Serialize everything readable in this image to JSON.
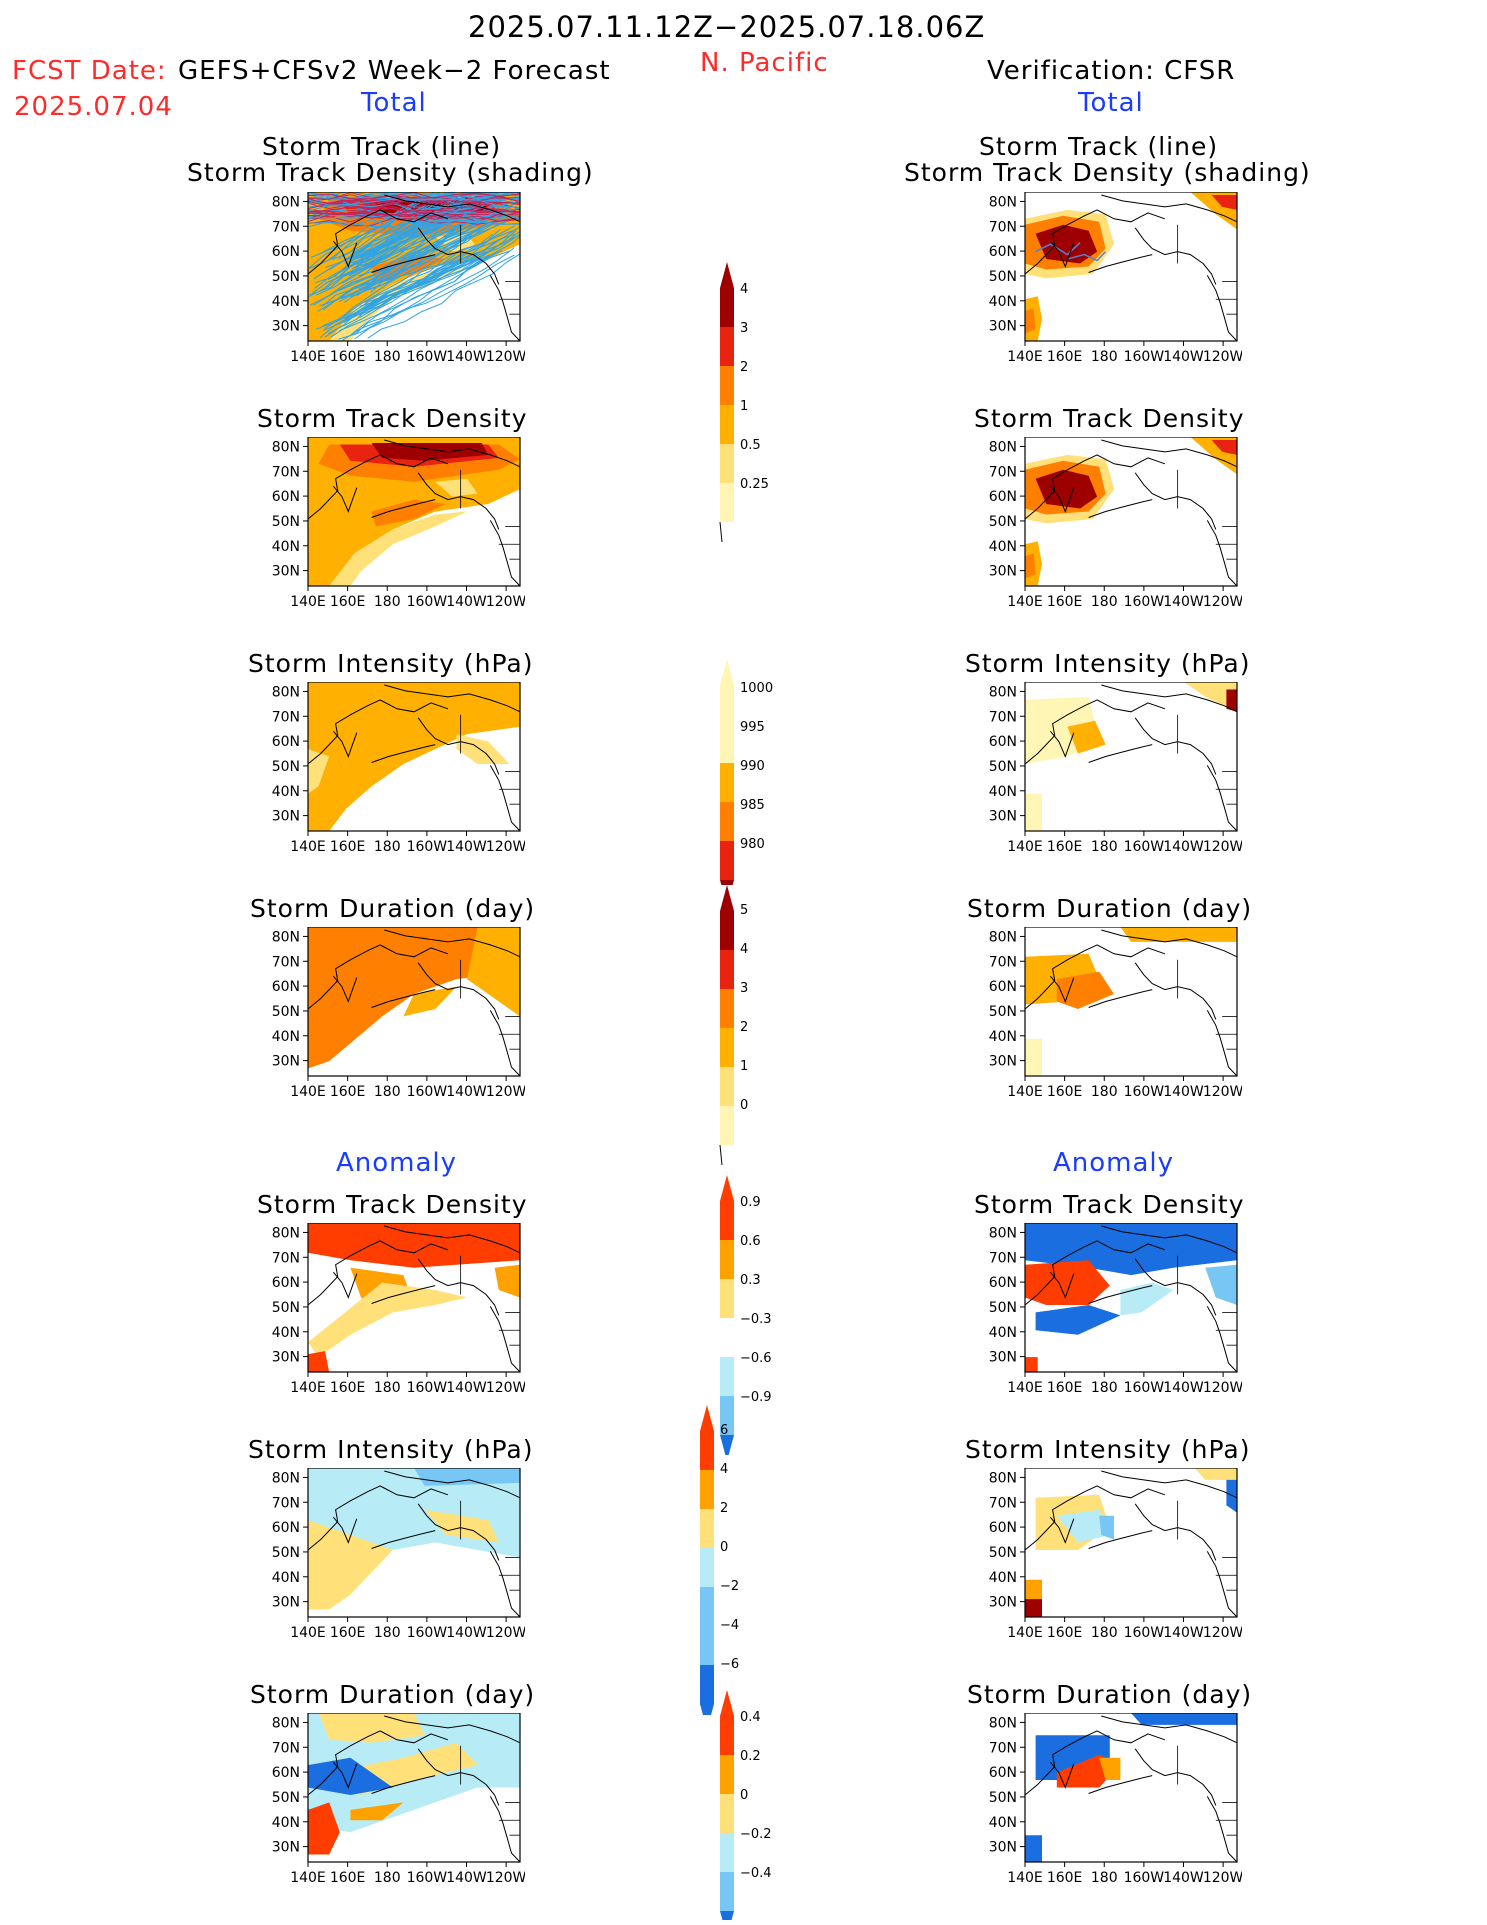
{
  "header": {
    "date_range": "2025.07.11.12Z−2025.07.18.06Z",
    "fcst_label": "FCST Date:",
    "fcst_model": "GEFS+CFSv2 Week−2 Forecast",
    "fcst_date": "2025.07.04",
    "region": "N. Pacific",
    "verification": "Verification: CFSR",
    "total_left": "Total",
    "total_right": "Total",
    "anomaly_left": "Anomaly",
    "anomaly_right": "Anomaly"
  },
  "panel_titles": {
    "track_line": "Storm Track (line)",
    "track_shading": "Storm Track Density (shading)",
    "density": "Storm Track Density",
    "intensity": "Storm Intensity (hPa)",
    "duration": "Storm Duration (day)"
  },
  "axes": {
    "lat_labels": [
      "80N",
      "70N",
      "60N",
      "50N",
      "40N",
      "30N"
    ],
    "lon_labels": [
      "140E",
      "160E",
      "180",
      "160W",
      "140W",
      "120W"
    ]
  },
  "colorbars": {
    "density_total": [
      "4",
      "3",
      "2",
      "1",
      "0.5",
      "0.25"
    ],
    "intensity_total": [
      "1000",
      "995",
      "990",
      "985",
      "980"
    ],
    "duration_total": [
      "5",
      "4",
      "3",
      "2",
      "1",
      "0"
    ],
    "density_anom": [
      "0.9",
      "0.6",
      "0.3",
      "−0.3",
      "−0.6",
      "−0.9"
    ],
    "intensity_anom": [
      "6",
      "4",
      "2",
      "0",
      "−2",
      "−4",
      "−6"
    ],
    "duration_anom": [
      "0.4",
      "0.2",
      "0",
      "−0.2",
      "−0.4"
    ]
  },
  "colors": {
    "dens_0": "#fff5b4",
    "dens_1": "#ffe079",
    "dens_2": "#ffb000",
    "dens_3": "#ff8000",
    "dens_4": "#e8230f",
    "dens_5": "#9e0000",
    "anom_pos1": "#ffe079",
    "anom_pos2": "#ffa200",
    "anom_pos3": "#ff3d00",
    "anom_neg1": "#b7ecf7",
    "anom_neg2": "#77c6f4",
    "anom_neg3": "#1a6ee0",
    "track_line": "#2fa4e7",
    "track_dark": "#c8245a"
  }
}
